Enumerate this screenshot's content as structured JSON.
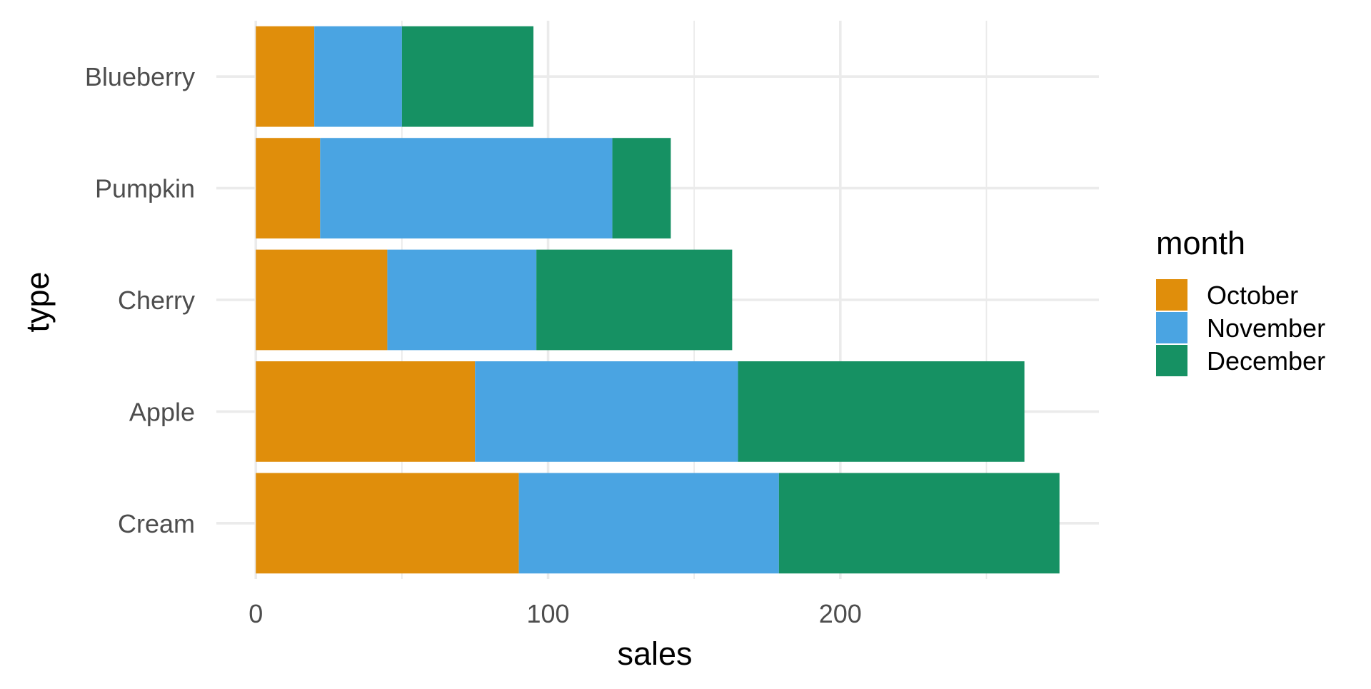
{
  "chart_data": {
    "type": "bar",
    "orientation": "horizontal",
    "stacked": true,
    "categories": [
      "Cream",
      "Apple",
      "Cherry",
      "Pumpkin",
      "Blueberry"
    ],
    "series": [
      {
        "name": "October",
        "color": "#E08E0B",
        "values": [
          90,
          75,
          45,
          22,
          20
        ]
      },
      {
        "name": "November",
        "color": "#4AA4E2",
        "values": [
          89,
          90,
          51,
          100,
          30
        ]
      },
      {
        "name": "December",
        "color": "#169163",
        "values": [
          96,
          98,
          67,
          20,
          45
        ]
      }
    ],
    "xlabel": "sales",
    "ylabel": "type",
    "xticks": [
      0,
      100,
      200
    ],
    "xlim": [
      -13.5,
      288.5
    ],
    "grid": true,
    "legend": {
      "title": "month",
      "position": "right"
    }
  }
}
